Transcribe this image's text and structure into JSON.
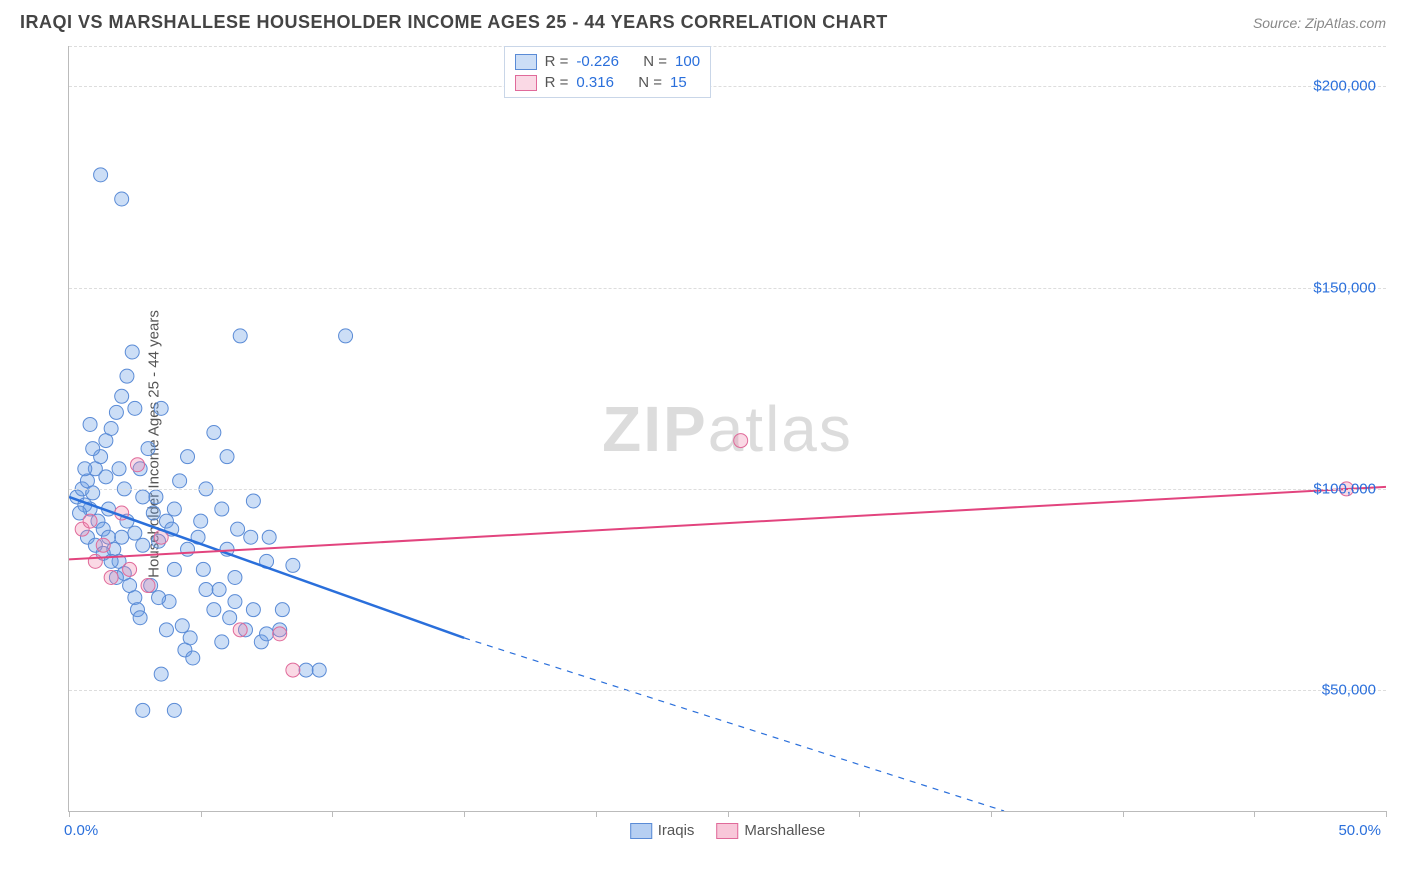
{
  "header": {
    "title": "IRAQI VS MARSHALLESE HOUSEHOLDER INCOME AGES 25 - 44 YEARS CORRELATION CHART",
    "source": "Source: ZipAtlas.com"
  },
  "chart": {
    "type": "scatter",
    "ylabel": "Householder Income Ages 25 - 44 years",
    "xlim": [
      0,
      50
    ],
    "ylim": [
      20000,
      210000
    ],
    "xticks_pct": [
      0,
      5,
      10,
      15,
      20,
      25,
      30,
      35,
      40,
      45,
      50
    ],
    "ytick_values": [
      50000,
      100000,
      150000,
      200000
    ],
    "ytick_labels": [
      "$50,000",
      "$100,000",
      "$150,000",
      "$200,000"
    ],
    "xlabel_min": "0.0%",
    "xlabel_max": "50.0%",
    "background_color": "#ffffff",
    "grid_color": "#dddddd",
    "axis_color": "#bbbbbb",
    "tick_label_color": "#2a6fdb",
    "watermark": {
      "prefix": "ZIP",
      "suffix": "atlas"
    },
    "series": {
      "iraqis": {
        "label": "Iraqis",
        "R": "-0.226",
        "N": "100",
        "color_fill": "rgba(110,160,230,0.35)",
        "color_stroke": "#5a8bd6",
        "marker_radius": 7,
        "trend": {
          "x1": 0,
          "y1": 98000,
          "x2": 15,
          "y2": 63000,
          "dash_x2": 35.5,
          "dash_y2": 20000,
          "color": "#2a6fdb",
          "width": 2.5
        },
        "points": [
          [
            0.3,
            98000
          ],
          [
            0.5,
            100000
          ],
          [
            0.6,
            96000
          ],
          [
            0.7,
            102000
          ],
          [
            0.8,
            95000
          ],
          [
            0.9,
            99000
          ],
          [
            1.0,
            105000
          ],
          [
            1.1,
            92000
          ],
          [
            1.2,
            108000
          ],
          [
            1.3,
            90000
          ],
          [
            1.4,
            112000
          ],
          [
            1.5,
            88000
          ],
          [
            1.6,
            115000
          ],
          [
            1.7,
            85000
          ],
          [
            1.8,
            119000
          ],
          [
            1.9,
            82000
          ],
          [
            2.0,
            123000
          ],
          [
            2.1,
            79000
          ],
          [
            2.2,
            128000
          ],
          [
            2.3,
            76000
          ],
          [
            2.4,
            134000
          ],
          [
            2.5,
            73000
          ],
          [
            2.6,
            70000
          ],
          [
            2.7,
            68000
          ],
          [
            2.8,
            98000
          ],
          [
            3.0,
            110000
          ],
          [
            3.2,
            94000
          ],
          [
            3.4,
            87000
          ],
          [
            3.5,
            120000
          ],
          [
            3.7,
            65000
          ],
          [
            3.8,
            72000
          ],
          [
            4.0,
            95000
          ],
          [
            4.2,
            102000
          ],
          [
            4.4,
            60000
          ],
          [
            4.5,
            108000
          ],
          [
            4.7,
            58000
          ],
          [
            5.0,
            92000
          ],
          [
            5.2,
            100000
          ],
          [
            5.5,
            114000
          ],
          [
            5.8,
            62000
          ],
          [
            6.0,
            85000
          ],
          [
            6.3,
            78000
          ],
          [
            6.5,
            138000
          ],
          [
            7.0,
            70000
          ],
          [
            7.5,
            82000
          ],
          [
            8.0,
            65000
          ],
          [
            8.5,
            81000
          ],
          [
            9.0,
            55000
          ],
          [
            0.4,
            94000
          ],
          [
            0.7,
            88000
          ],
          [
            1.0,
            86000
          ],
          [
            1.3,
            84000
          ],
          [
            1.6,
            82000
          ],
          [
            1.9,
            105000
          ],
          [
            2.2,
            92000
          ],
          [
            2.5,
            89000
          ],
          [
            2.8,
            86000
          ],
          [
            3.1,
            76000
          ],
          [
            3.4,
            73000
          ],
          [
            3.7,
            92000
          ],
          [
            4.0,
            80000
          ],
          [
            4.3,
            66000
          ],
          [
            4.6,
            63000
          ],
          [
            4.9,
            88000
          ],
          [
            5.2,
            75000
          ],
          [
            5.5,
            70000
          ],
          [
            5.8,
            95000
          ],
          [
            6.1,
            68000
          ],
          [
            6.4,
            90000
          ],
          [
            6.7,
            65000
          ],
          [
            7.0,
            97000
          ],
          [
            7.3,
            62000
          ],
          [
            7.6,
            88000
          ],
          [
            1.2,
            178000
          ],
          [
            2.0,
            172000
          ],
          [
            2.8,
            45000
          ],
          [
            0.6,
            105000
          ],
          [
            0.9,
            110000
          ],
          [
            1.5,
            95000
          ],
          [
            2.1,
            100000
          ],
          [
            2.7,
            105000
          ],
          [
            3.3,
            98000
          ],
          [
            3.9,
            90000
          ],
          [
            4.5,
            85000
          ],
          [
            5.1,
            80000
          ],
          [
            5.7,
            75000
          ],
          [
            6.3,
            72000
          ],
          [
            6.9,
            88000
          ],
          [
            7.5,
            64000
          ],
          [
            8.1,
            70000
          ],
          [
            3.5,
            54000
          ],
          [
            4.0,
            45000
          ],
          [
            0.8,
            116000
          ],
          [
            1.4,
            103000
          ],
          [
            2.0,
            88000
          ],
          [
            10.5,
            138000
          ],
          [
            9.5,
            55000
          ],
          [
            6.0,
            108000
          ],
          [
            2.5,
            120000
          ],
          [
            1.8,
            78000
          ]
        ]
      },
      "marshallese": {
        "label": "Marshallese",
        "R": "0.316",
        "N": "15",
        "color_fill": "rgba(240,130,170,0.30)",
        "color_stroke": "#e06a9a",
        "marker_radius": 7,
        "trend": {
          "x1": 0,
          "y1": 82500,
          "x2": 50,
          "y2": 100500,
          "color": "#e2447e",
          "width": 2
        },
        "points": [
          [
            0.5,
            90000
          ],
          [
            0.8,
            92000
          ],
          [
            1.0,
            82000
          ],
          [
            1.3,
            86000
          ],
          [
            1.6,
            78000
          ],
          [
            2.0,
            94000
          ],
          [
            2.3,
            80000
          ],
          [
            2.6,
            106000
          ],
          [
            3.0,
            76000
          ],
          [
            3.5,
            88000
          ],
          [
            6.5,
            65000
          ],
          [
            8.0,
            64000
          ],
          [
            8.5,
            55000
          ],
          [
            25.5,
            112000
          ],
          [
            48.5,
            100000
          ]
        ]
      }
    },
    "correl_box": {
      "left_pct": 33,
      "top_pct": 0
    },
    "legend": {
      "items": [
        {
          "label": "Iraqis",
          "fill": "rgba(110,160,230,0.5)",
          "stroke": "#5a8bd6"
        },
        {
          "label": "Marshallese",
          "fill": "rgba(240,130,170,0.45)",
          "stroke": "#e06a9a"
        }
      ]
    }
  }
}
